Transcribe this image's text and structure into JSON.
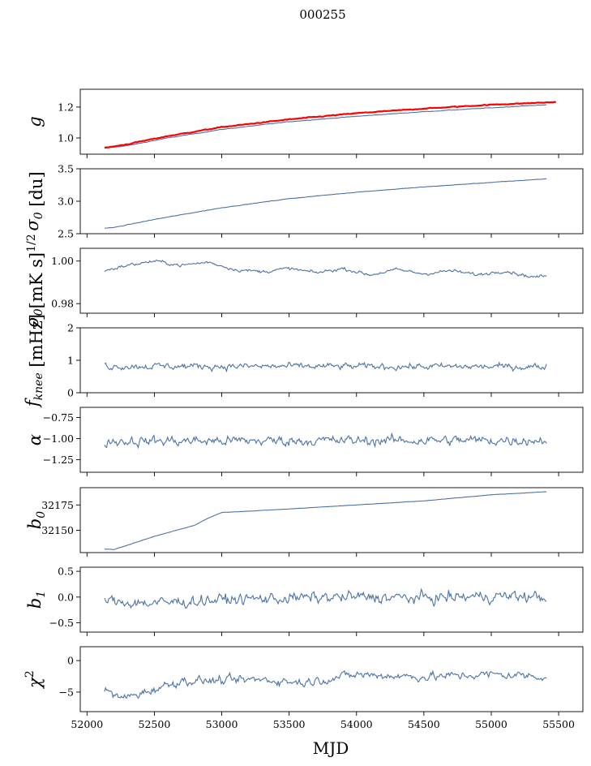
{
  "chart_data": {
    "type": "line",
    "title": "000255",
    "xlabel": "MJD",
    "xlim": [
      51950,
      55680
    ],
    "xticks": [
      52000,
      52500,
      53000,
      53500,
      54000,
      54500,
      55000,
      55500
    ],
    "xtick_labels": [
      "52000",
      "52500",
      "53000",
      "53500",
      "54000",
      "54500",
      "55000",
      "55500"
    ],
    "data_x_range": [
      52130,
      55410
    ],
    "line_color": "#4c72a5",
    "overlay_color": "#ff0000",
    "panels": [
      {
        "name": "g",
        "ylabel": {
          "main": "g",
          "sub": "",
          "sup": "",
          "unit": ""
        },
        "ylim": [
          0.895,
          1.315
        ],
        "yticks": [
          1.0,
          1.2
        ],
        "ytick_labels": [
          "1.0",
          "1.2"
        ],
        "series": [
          {
            "name": "g",
            "color": "#4c72a5",
            "x": [
              52130,
              52300,
              52600,
              53000,
              53500,
              54000,
              54500,
              55000,
              55410
            ],
            "y": [
              0.933,
              0.95,
              1.0,
              1.055,
              1.105,
              1.14,
              1.17,
              1.195,
              1.215
            ],
            "noise": 0.002
          },
          {
            "name": "g model",
            "color": "#ff0000",
            "x": [
              52130,
              52300,
              52600,
              53000,
              53500,
              54000,
              54500,
              55000,
              55480
            ],
            "y": [
              0.935,
              0.96,
              1.012,
              1.07,
              1.12,
              1.16,
              1.19,
              1.215,
              1.232
            ],
            "noise": 0.003
          }
        ]
      },
      {
        "name": "sigma0-du",
        "ylabel": {
          "main": "σ",
          "sub": "0",
          "sup": "",
          "unit": " [du]"
        },
        "ylim": [
          2.5,
          3.5
        ],
        "yticks": [
          2.5,
          3.0,
          3.5
        ],
        "ytick_labels": [
          "2.5",
          "3.0",
          "3.5"
        ],
        "series": [
          {
            "name": "sigma0",
            "color": "#4c72a5",
            "x": [
              52130,
              52200,
              52500,
              53000,
              53500,
              54000,
              54500,
              55000,
              55410
            ],
            "y": [
              2.585,
              2.595,
              2.72,
              2.9,
              3.04,
              3.14,
              3.22,
              3.29,
              3.345
            ],
            "noise": 0.004
          }
        ]
      },
      {
        "name": "sigma0-mK",
        "ylabel": {
          "main": "σ",
          "sub": "0",
          "sup": "1/2",
          "unit": "[mK s]"
        },
        "ylim": [
          0.9755,
          1.006
        ],
        "yticks": [
          0.98,
          1.0
        ],
        "ytick_labels": [
          "0.98",
          "1.00"
        ],
        "series": [
          {
            "name": "sigma0 calibrated",
            "color": "#4c72a5",
            "x": [
              52130,
              52300,
              52500,
              52700,
              52900,
              53100,
              53300,
              53500,
              53700,
              53900,
              54100,
              54300,
              54500,
              54700,
              54900,
              55100,
              55300,
              55410
            ],
            "y": [
              0.9955,
              0.998,
              1.0,
              0.998,
              0.9995,
              0.996,
              0.995,
              0.9965,
              0.9945,
              0.9965,
              0.9935,
              0.996,
              0.994,
              0.9955,
              0.9935,
              0.9955,
              0.9925,
              0.993
            ],
            "noise": 0.0009
          }
        ]
      },
      {
        "name": "fknee",
        "ylabel": {
          "main": "f",
          "sub": "knee",
          "sup": "",
          "unit": " [mHz]"
        },
        "ylim": [
          0,
          2
        ],
        "yticks": [
          0,
          1,
          2
        ],
        "ytick_labels": [
          "0",
          "1",
          "2"
        ],
        "series": [
          {
            "name": "fknee",
            "color": "#4c72a5",
            "x": [
              52130,
              55410
            ],
            "y": [
              0.82,
              0.8
            ],
            "noise": 0.12
          }
        ]
      },
      {
        "name": "alpha",
        "ylabel": {
          "main": "α",
          "sub": "",
          "sup": "",
          "unit": ""
        },
        "ylim": [
          -1.4,
          -0.63
        ],
        "yticks": [
          -1.25,
          -1.0,
          -0.75
        ],
        "ytick_labels": [
          "−1.25",
          "−1.00",
          "−0.75"
        ],
        "series": [
          {
            "name": "alpha",
            "color": "#4c72a5",
            "x": [
              52130,
              55410
            ],
            "y": [
              -1.03,
              -1.02
            ],
            "noise": 0.07
          }
        ]
      },
      {
        "name": "b0",
        "ylabel": {
          "main": "b",
          "sub": "0",
          "sup": "",
          "unit": ""
        },
        "ylim": [
          32128,
          32192
        ],
        "yticks": [
          32150,
          32175
        ],
        "ytick_labels": [
          "32150",
          "32175"
        ],
        "series": [
          {
            "name": "b0",
            "color": "#4c72a5",
            "x": [
              52130,
              52200,
              52500,
              52800,
              52900,
              53000,
              53500,
              54000,
              54500,
              55000,
              55410
            ],
            "y": [
              32131.5,
              32131,
              32144,
              32155,
              32162,
              32167.5,
              32171,
              32175,
              32179,
              32185,
              32188
            ],
            "noise": 0.15
          }
        ]
      },
      {
        "name": "b1",
        "ylabel": {
          "main": "b",
          "sub": "1",
          "sup": "",
          "unit": ""
        },
        "ylim": [
          -0.68,
          0.58
        ],
        "yticks": [
          -0.5,
          0.0,
          0.5
        ],
        "ytick_labels": [
          "−0.5",
          "0.0",
          "0.5"
        ],
        "series": [
          {
            "name": "b1",
            "color": "#4c72a5",
            "x": [
              52130,
              52500,
              53000,
              53500,
              54000,
              54500,
              55000,
              55410
            ],
            "y": [
              -0.08,
              -0.12,
              -0.05,
              -0.02,
              0.0,
              -0.02,
              0.02,
              0.0
            ],
            "noise": 0.13
          }
        ]
      },
      {
        "name": "chi2",
        "ylabel": {
          "main": "χ",
          "sub": "",
          "sup": "2",
          "unit": ""
        },
        "ylim": [
          -8.1,
          2.2
        ],
        "yticks": [
          -5,
          0
        ],
        "ytick_labels": [
          "−5",
          "0"
        ],
        "series": [
          {
            "name": "chi2",
            "color": "#4c72a5",
            "x": [
              52130,
              52250,
              52400,
              52700,
              53000,
              53300,
              53600,
              54000,
              54500,
              55000,
              55410
            ],
            "y": [
              -4.8,
              -6.0,
              -5.2,
              -3.2,
              -3.2,
              -3.0,
              -3.5,
              -2.2,
              -2.6,
              -2.2,
              -2.5
            ],
            "noise": 0.8
          }
        ]
      }
    ]
  }
}
